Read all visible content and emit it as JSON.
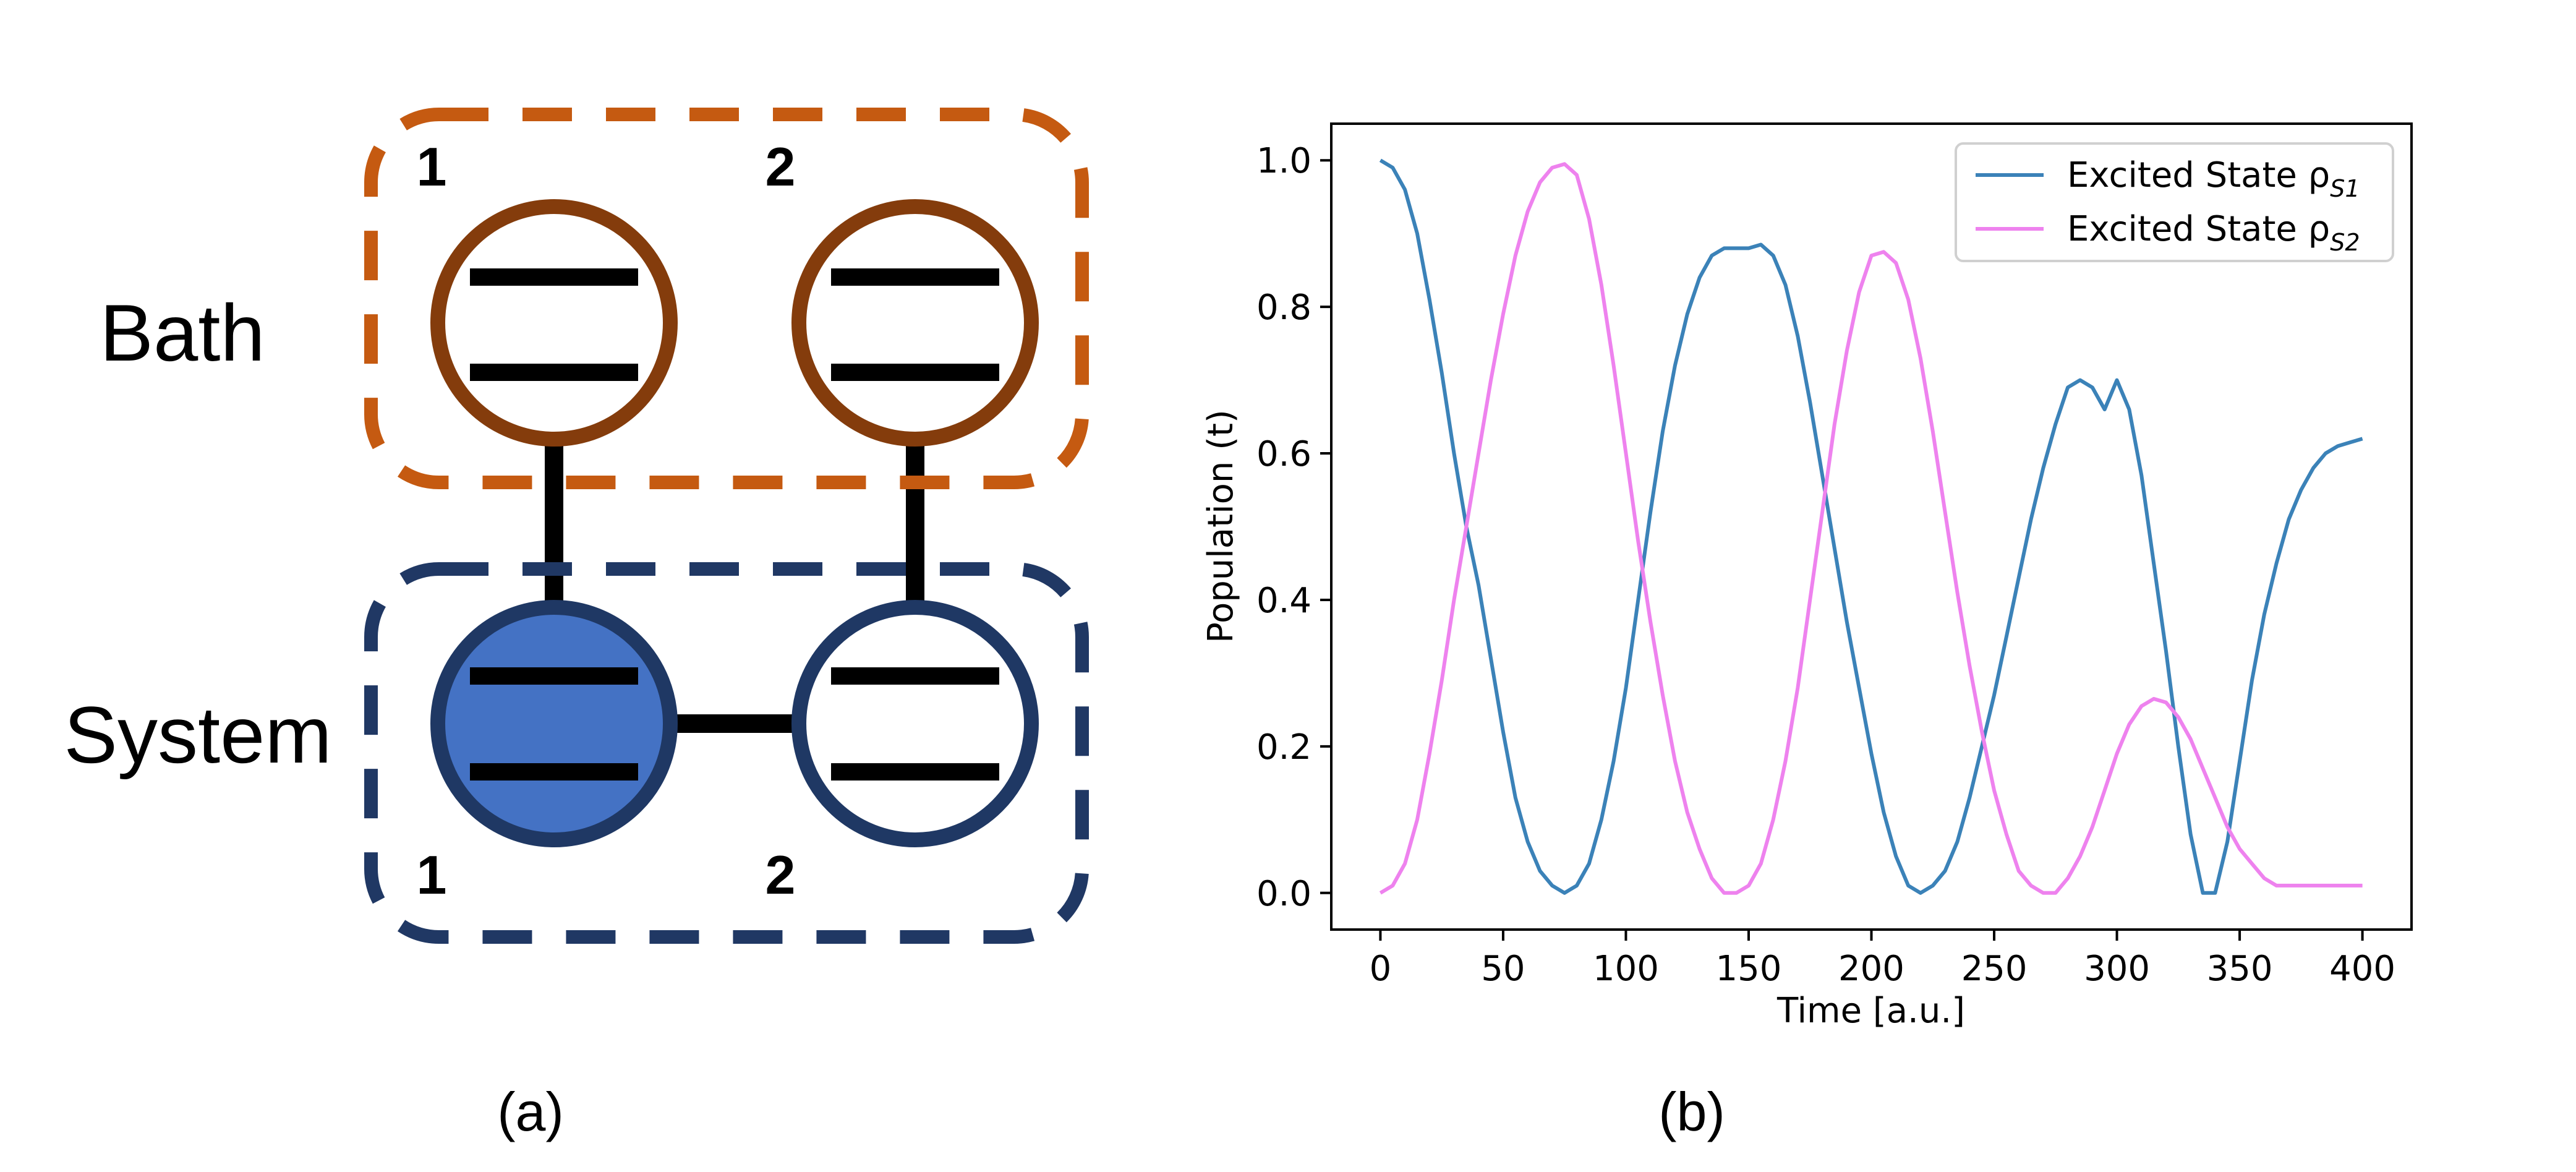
{
  "panel_a": {
    "caption": "(a)",
    "bath_label": "Bath",
    "system_label": "System",
    "bath_site_labels": [
      "1",
      "2"
    ],
    "system_site_labels": [
      "1",
      "2"
    ],
    "colors": {
      "bath_box": "#c55a11",
      "system_box": "#203864",
      "bath_circle": "#843c0c",
      "system_circle": "#1f3864",
      "excited_fill": "#4472c4",
      "line": "#000000"
    }
  },
  "panel_b": {
    "caption": "(b)"
  },
  "chart_data": {
    "type": "line",
    "title": "",
    "xlabel": "Time [a.u.]",
    "ylabel": "Population (t)",
    "xlim": [
      -20,
      420
    ],
    "ylim": [
      -0.05,
      1.05
    ],
    "xticks": [
      0,
      50,
      100,
      150,
      200,
      250,
      300,
      350,
      400
    ],
    "yticks": [
      "0.0",
      "0.2",
      "0.4",
      "0.6",
      "0.8",
      "1.0"
    ],
    "grid": false,
    "legend_position": "top-right",
    "series": [
      {
        "name": "Excited State ρ",
        "subscript": "S1",
        "color": "#3b82b8",
        "x": [
          0,
          5,
          10,
          15,
          20,
          25,
          30,
          35,
          40,
          45,
          50,
          55,
          60,
          65,
          70,
          75,
          80,
          85,
          90,
          95,
          100,
          105,
          110,
          115,
          120,
          125,
          130,
          135,
          140,
          145,
          150,
          155,
          160,
          165,
          170,
          175,
          180,
          185,
          190,
          195,
          200,
          205,
          210,
          215,
          220,
          225,
          230,
          235,
          240,
          245,
          250,
          255,
          260,
          265,
          270,
          275,
          280,
          285,
          290,
          295,
          300,
          305,
          310,
          315,
          320,
          325,
          330,
          335,
          340,
          345,
          350,
          355,
          360,
          365,
          370,
          375,
          380,
          385,
          390,
          395,
          400
        ],
        "y": [
          1.0,
          0.99,
          0.96,
          0.9,
          0.81,
          0.71,
          0.6,
          0.5,
          0.42,
          0.32,
          0.22,
          0.13,
          0.07,
          0.03,
          0.01,
          0.0,
          0.01,
          0.04,
          0.1,
          0.18,
          0.28,
          0.4,
          0.52,
          0.63,
          0.72,
          0.79,
          0.84,
          0.87,
          0.88,
          0.88,
          0.88,
          0.885,
          0.87,
          0.83,
          0.76,
          0.67,
          0.57,
          0.47,
          0.37,
          0.28,
          0.19,
          0.11,
          0.05,
          0.01,
          0.0,
          0.01,
          0.03,
          0.07,
          0.13,
          0.2,
          0.27,
          0.35,
          0.43,
          0.51,
          0.58,
          0.64,
          0.69,
          0.7,
          0.69,
          0.66,
          0.7,
          0.66,
          0.57,
          0.45,
          0.33,
          0.2,
          0.08,
          0.0,
          0.0,
          0.07,
          0.18,
          0.29,
          0.38,
          0.45,
          0.51,
          0.55,
          0.58,
          0.6,
          0.61,
          0.615,
          0.62
        ]
      },
      {
        "name": "Excited State ρ",
        "subscript": "S2",
        "color": "#ee82ee",
        "x": [
          0,
          5,
          10,
          15,
          20,
          25,
          30,
          35,
          40,
          45,
          50,
          55,
          60,
          65,
          70,
          75,
          80,
          85,
          90,
          95,
          100,
          105,
          110,
          115,
          120,
          125,
          130,
          135,
          140,
          145,
          150,
          155,
          160,
          165,
          170,
          175,
          180,
          185,
          190,
          195,
          200,
          205,
          210,
          215,
          220,
          225,
          230,
          235,
          240,
          245,
          250,
          255,
          260,
          265,
          270,
          275,
          280,
          285,
          290,
          295,
          300,
          305,
          310,
          315,
          320,
          325,
          330,
          335,
          340,
          345,
          350,
          355,
          360,
          365,
          370,
          375,
          380,
          385,
          390,
          395,
          400
        ],
        "y": [
          0.0,
          0.01,
          0.04,
          0.1,
          0.19,
          0.29,
          0.4,
          0.5,
          0.6,
          0.7,
          0.79,
          0.87,
          0.93,
          0.97,
          0.99,
          0.995,
          0.98,
          0.92,
          0.83,
          0.72,
          0.6,
          0.48,
          0.37,
          0.27,
          0.18,
          0.11,
          0.06,
          0.02,
          0.0,
          0.0,
          0.01,
          0.04,
          0.1,
          0.18,
          0.28,
          0.4,
          0.52,
          0.64,
          0.74,
          0.82,
          0.87,
          0.875,
          0.86,
          0.81,
          0.73,
          0.63,
          0.52,
          0.41,
          0.31,
          0.22,
          0.14,
          0.08,
          0.03,
          0.01,
          0.0,
          0.0,
          0.02,
          0.05,
          0.09,
          0.14,
          0.19,
          0.23,
          0.255,
          0.265,
          0.26,
          0.24,
          0.21,
          0.17,
          0.13,
          0.09,
          0.06,
          0.04,
          0.02,
          0.01,
          0.01,
          0.01,
          0.01,
          0.01,
          0.01,
          0.01,
          0.01
        ]
      }
    ]
  }
}
